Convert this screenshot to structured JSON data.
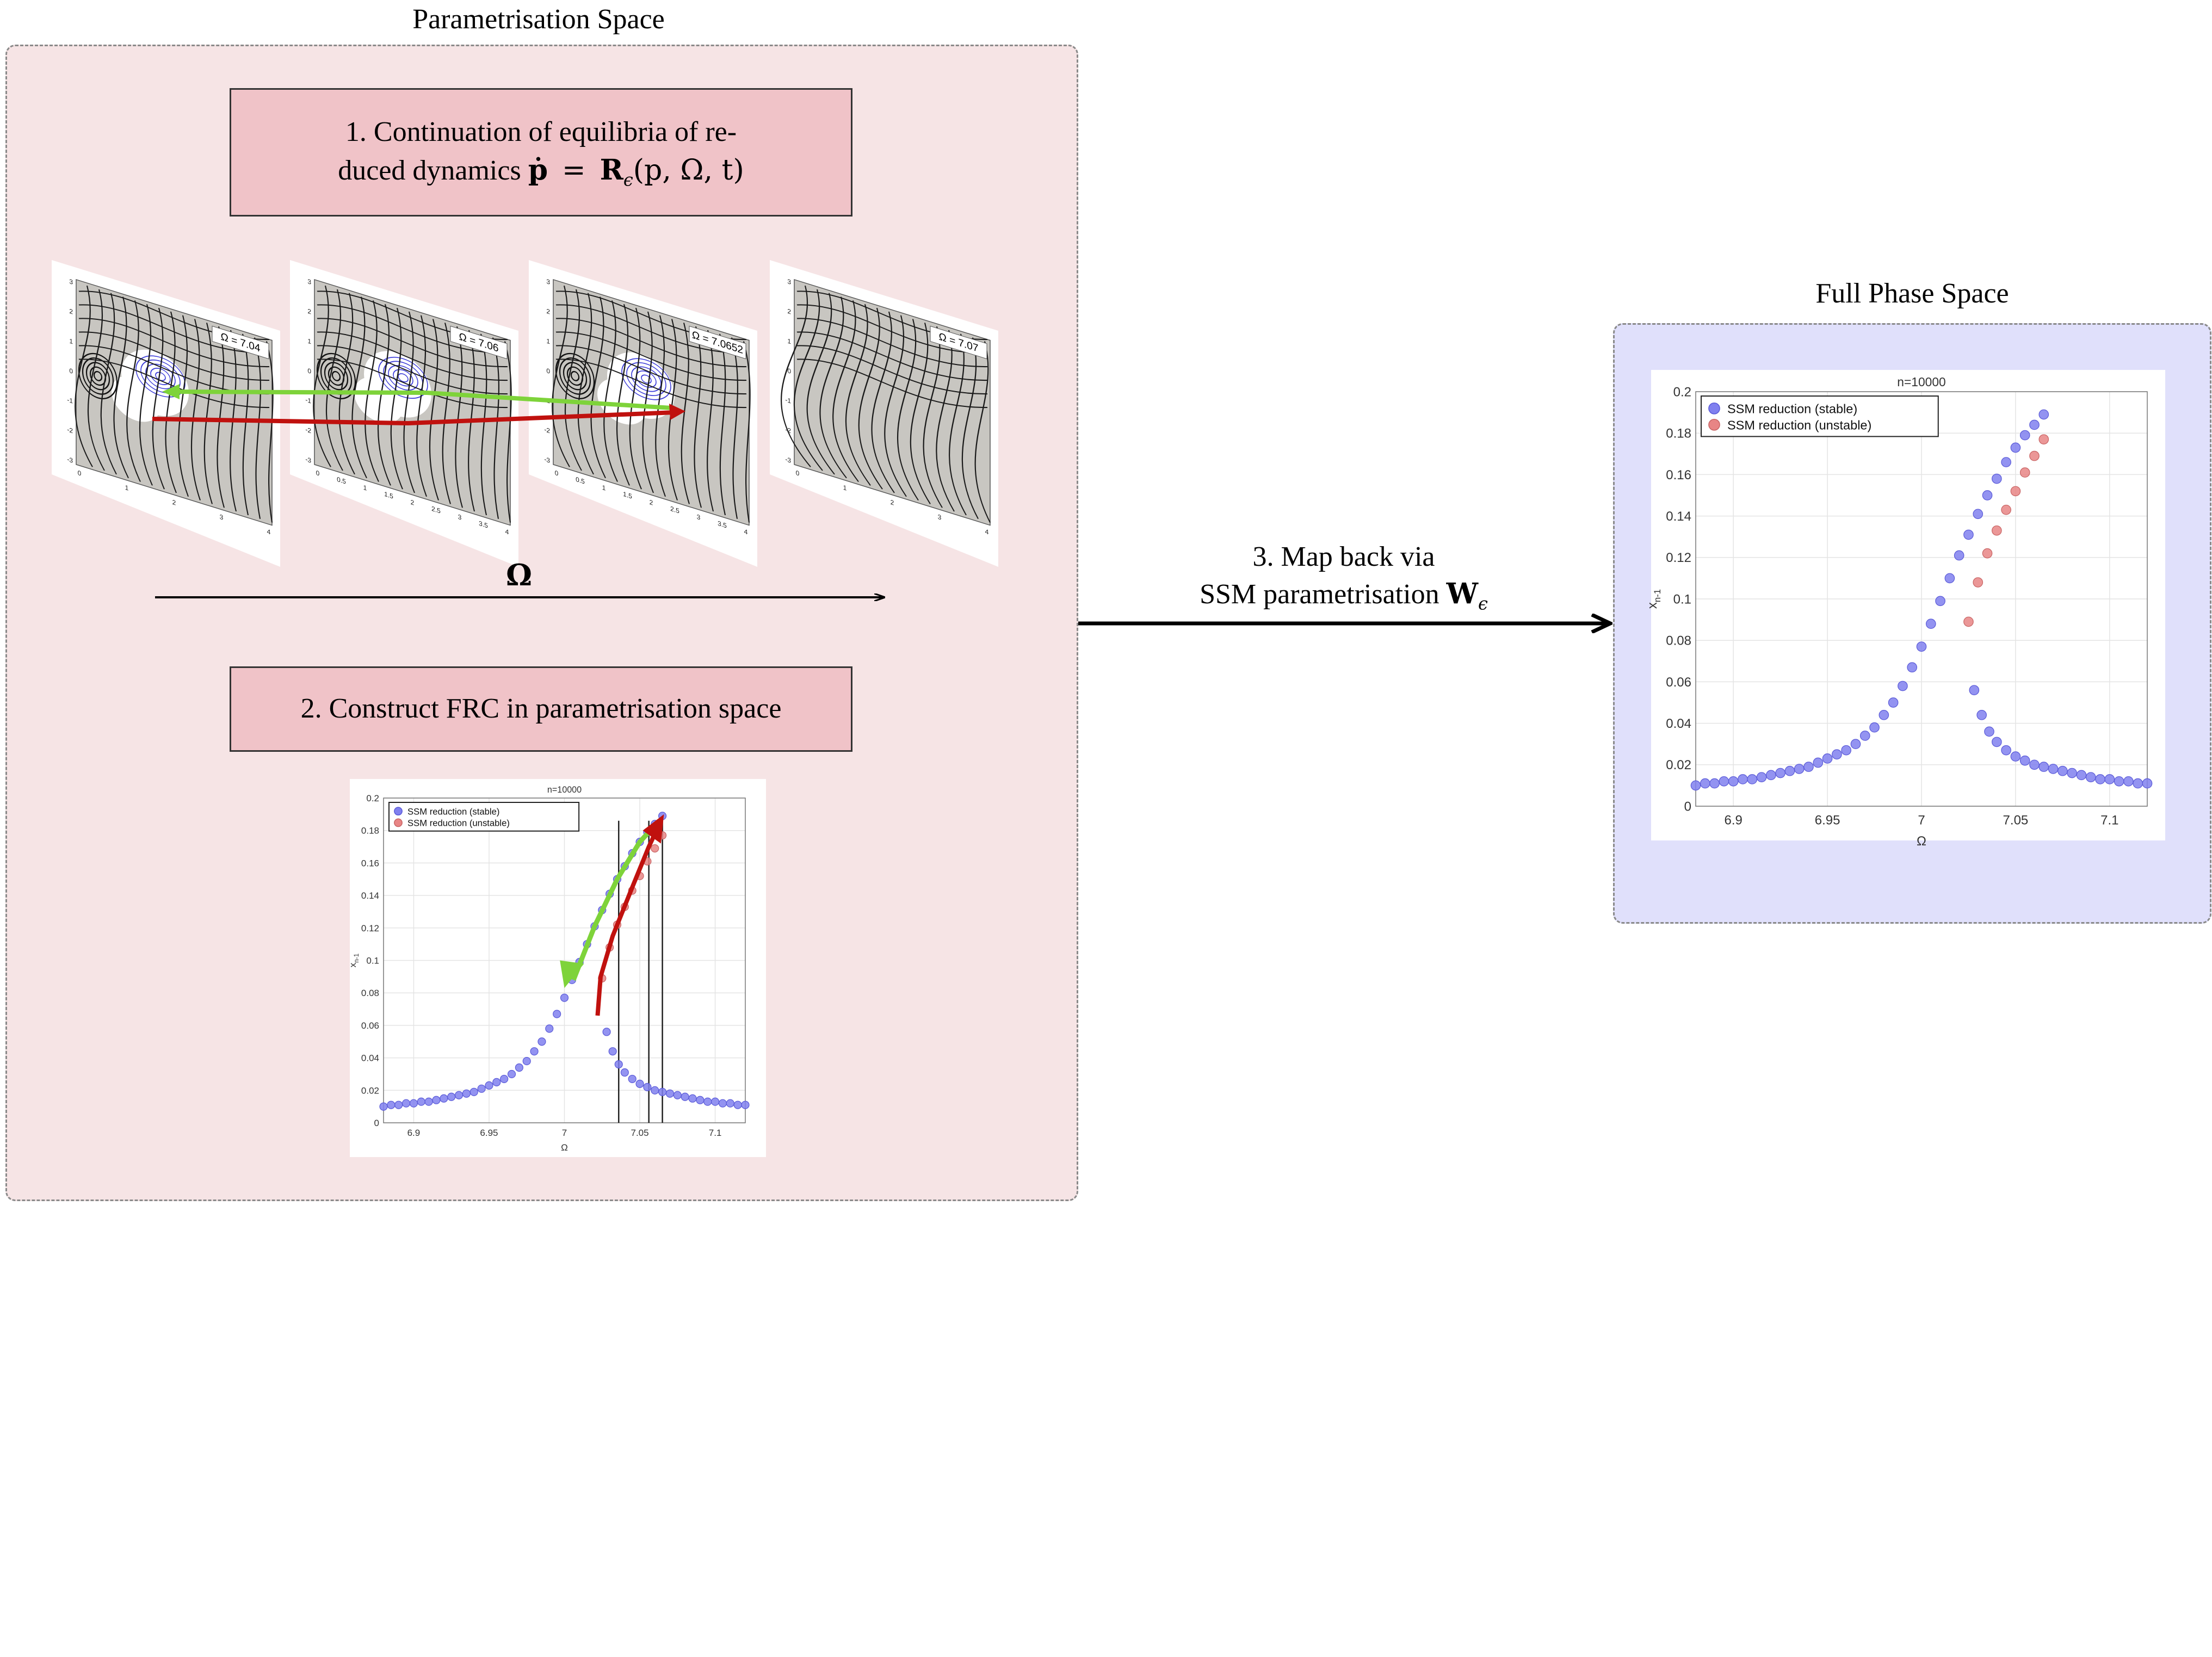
{
  "left_panel": {
    "title": "Parametrisation Space",
    "step1_line1": "1.  Continuation of equilibria of re-",
    "step1_line2_text": "duced dynamics ",
    "step1_math_pdot": "ṗ",
    "step1_math_eq": "=",
    "step1_math_R": "R",
    "step1_math_eps": "ϵ",
    "step1_math_args": "(p, Ω, t)",
    "omega_axis_label": "Ω",
    "step2_label": "2.  Construct FRC in parametrisation space",
    "phase_portraits": [
      {
        "label": "Ω = 7.04",
        "x_ticks": [
          "0",
          "1",
          "2",
          "3",
          "4"
        ]
      },
      {
        "label": "Ω = 7.06",
        "x_ticks": [
          "0",
          "0.5",
          "1",
          "1.5",
          "2",
          "2.5",
          "3",
          "3.5",
          "4"
        ]
      },
      {
        "label": "Ω = 7.0652",
        "x_ticks": [
          "0",
          "0.5",
          "1",
          "1.5",
          "2",
          "2.5",
          "3",
          "3.5",
          "4"
        ]
      },
      {
        "label": "Ω = 7.07",
        "x_ticks": [
          "0",
          "1",
          "2",
          "3",
          "4"
        ]
      }
    ],
    "portrait_y_ticks": [
      "3",
      "2",
      "1",
      "0",
      "-1",
      "-2",
      "-3"
    ]
  },
  "middle": {
    "step3_line1": "3. Map back via",
    "step3_line2_text": "SSM parametrisation ",
    "step3_math_W": "W",
    "step3_math_eps": "ϵ"
  },
  "right_panel": {
    "title": "Full Phase Space"
  },
  "colors": {
    "left_panel_bg": "#f6e4e5",
    "right_panel_bg": "#e0e0fb",
    "step_box_bg": "#f0c3c8",
    "stable": "#8080ef",
    "unstable": "#e88585",
    "green_arrow": "#7ed33a",
    "red_arrow": "#c0110e"
  },
  "chart_data": [
    {
      "type": "scatter",
      "title": "n=10000",
      "xlabel": "Ω",
      "ylabel": "x_{n-1}",
      "xlim": [
        6.88,
        7.12
      ],
      "ylim": [
        0,
        0.2
      ],
      "x_ticks": [
        "6.9",
        "6.95",
        "7",
        "7.05",
        "7.1"
      ],
      "y_ticks": [
        "0",
        "0.02",
        "0.04",
        "0.06",
        "0.08",
        "0.1",
        "0.12",
        "0.14",
        "0.16",
        "0.18",
        "0.2"
      ],
      "legend_position": "top-left",
      "series": [
        {
          "name": "SSM reduction (stable)",
          "x": [
            6.88,
            6.885,
            6.89,
            6.895,
            6.9,
            6.905,
            6.91,
            6.915,
            6.92,
            6.925,
            6.93,
            6.935,
            6.94,
            6.945,
            6.95,
            6.955,
            6.96,
            6.965,
            6.97,
            6.975,
            6.98,
            6.985,
            6.99,
            6.995,
            7.0,
            7.005,
            7.01,
            7.015,
            7.02,
            7.025,
            7.03,
            7.035,
            7.04,
            7.045,
            7.05,
            7.055,
            7.06,
            7.065,
            7.028,
            7.032,
            7.036,
            7.04,
            7.045,
            7.05,
            7.055,
            7.06,
            7.065,
            7.07,
            7.075,
            7.08,
            7.085,
            7.09,
            7.095,
            7.1,
            7.105,
            7.11,
            7.115,
            7.12
          ],
          "y": [
            0.01,
            0.011,
            0.011,
            0.012,
            0.012,
            0.013,
            0.013,
            0.014,
            0.015,
            0.016,
            0.017,
            0.018,
            0.019,
            0.021,
            0.023,
            0.025,
            0.027,
            0.03,
            0.034,
            0.038,
            0.044,
            0.05,
            0.058,
            0.067,
            0.077,
            0.088,
            0.099,
            0.11,
            0.121,
            0.131,
            0.141,
            0.15,
            0.158,
            0.166,
            0.173,
            0.179,
            0.184,
            0.189,
            0.056,
            0.044,
            0.036,
            0.031,
            0.027,
            0.024,
            0.022,
            0.02,
            0.019,
            0.018,
            0.017,
            0.016,
            0.015,
            0.014,
            0.013,
            0.013,
            0.012,
            0.012,
            0.011,
            0.011
          ]
        },
        {
          "name": "SSM reduction (unstable)",
          "x": [
            7.025,
            7.03,
            7.035,
            7.04,
            7.045,
            7.05,
            7.055,
            7.06,
            7.065
          ],
          "y": [
            0.089,
            0.108,
            0.122,
            0.133,
            0.143,
            0.152,
            0.161,
            0.169,
            0.177
          ]
        }
      ]
    }
  ]
}
